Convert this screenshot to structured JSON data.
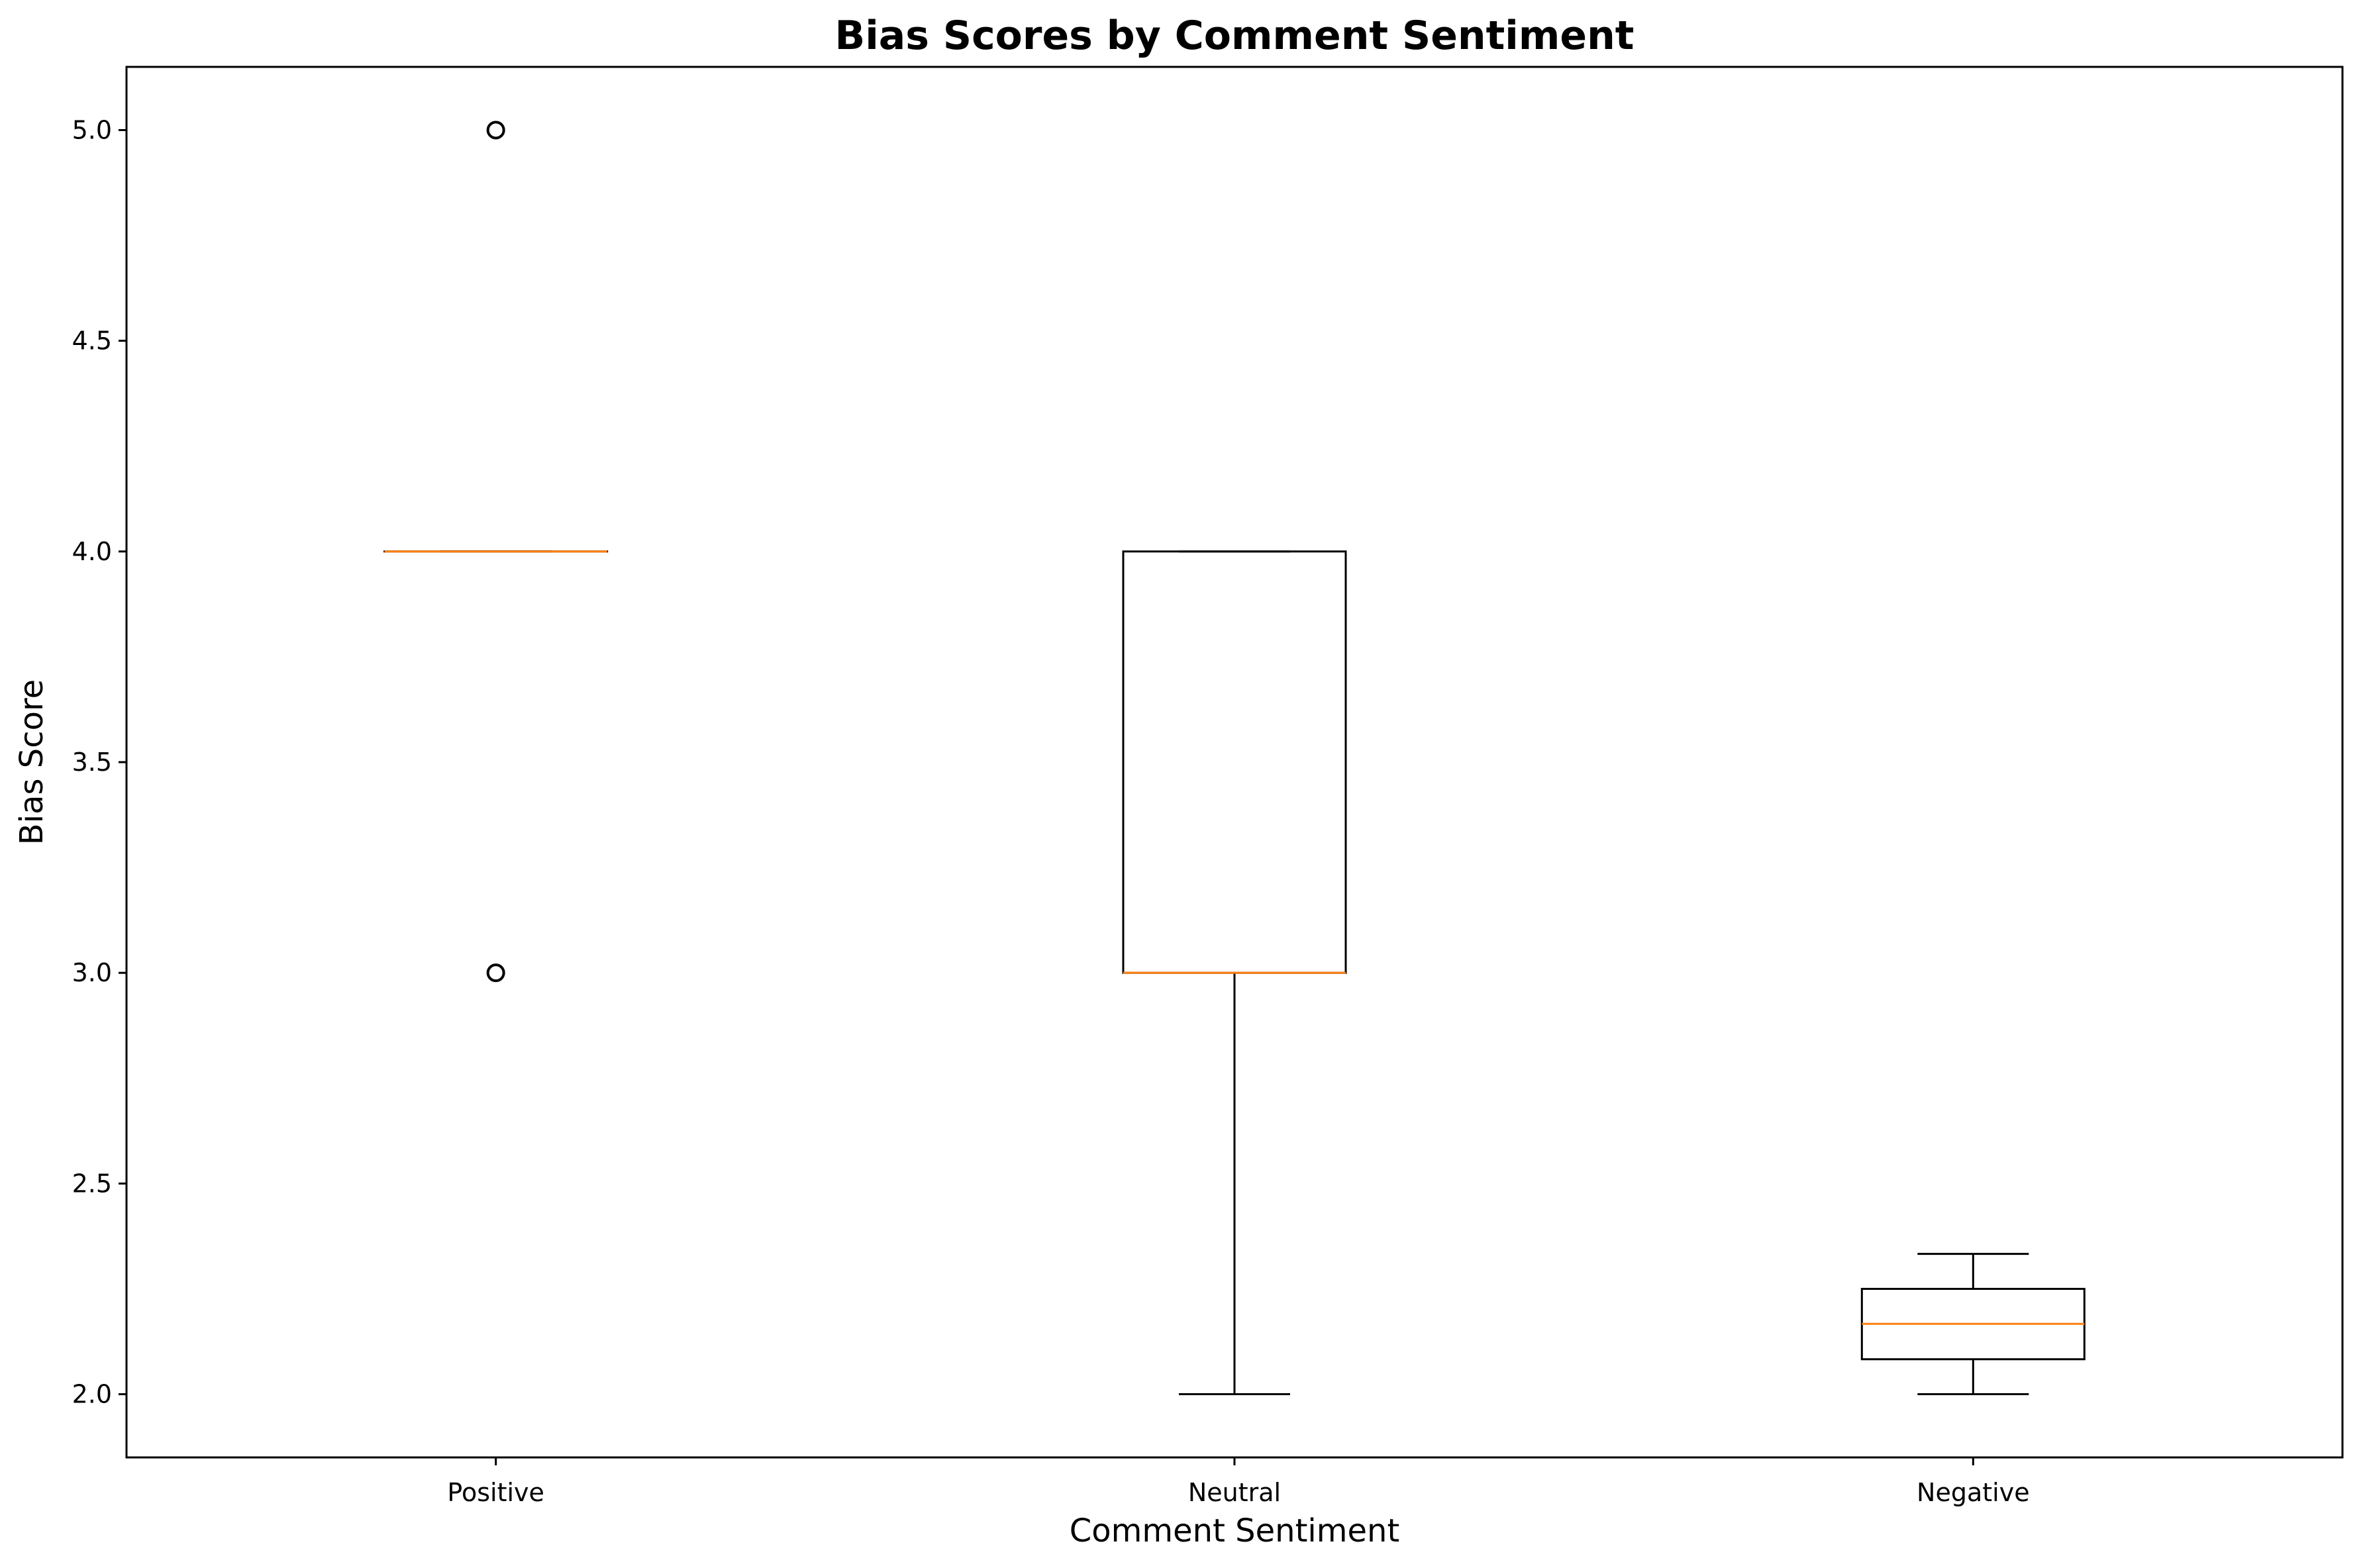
{
  "chart_data": {
    "type": "box",
    "title": "Bias Scores by Comment Sentiment",
    "xlabel": "Comment Sentiment",
    "ylabel": "Bias Score",
    "categories": [
      "Positive",
      "Neutral",
      "Negative"
    ],
    "ylim": [
      1.85,
      5.15
    ],
    "yticks": [
      2.0,
      2.5,
      3.0,
      3.5,
      4.0,
      4.5,
      5.0
    ],
    "ytick_labels": [
      "2.0",
      "2.5",
      "3.0",
      "3.5",
      "4.0",
      "4.5",
      "5.0"
    ],
    "grid": false,
    "boxes": [
      {
        "category": "Positive",
        "whisker_low": 4.0,
        "q1": 4.0,
        "median": 4.0,
        "q3": 4.0,
        "whisker_high": 4.0,
        "outliers": [
          3.0,
          5.0
        ]
      },
      {
        "category": "Neutral",
        "whisker_low": 2.0,
        "q1": 3.0,
        "median": 3.0,
        "q3": 4.0,
        "whisker_high": 4.0,
        "outliers": []
      },
      {
        "category": "Negative",
        "whisker_low": 2.0,
        "q1": 2.083,
        "median": 2.167,
        "q3": 2.25,
        "whisker_high": 2.333,
        "outliers": []
      }
    ],
    "colors": {
      "box": "#000000",
      "median": "#ff7f0e",
      "outlier": "#000000"
    }
  }
}
